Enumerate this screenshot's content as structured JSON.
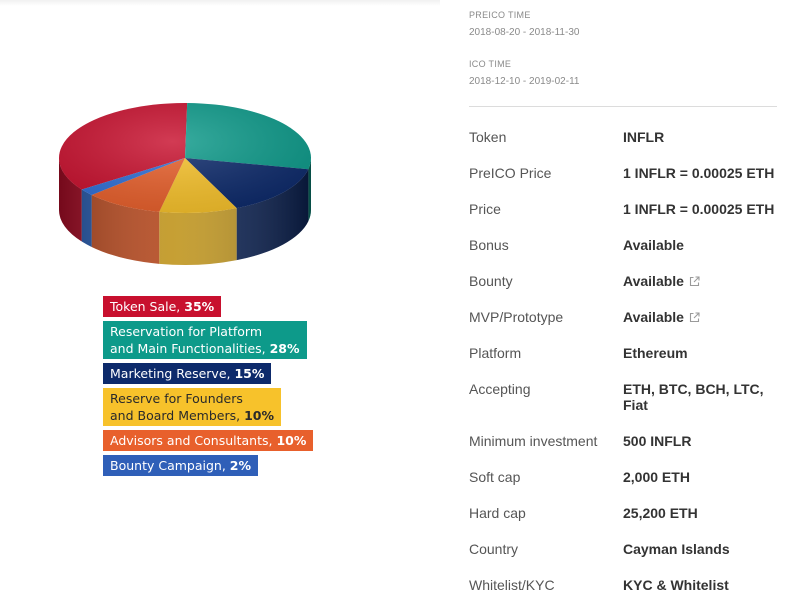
{
  "chart_data": {
    "type": "pie",
    "slices": [
      {
        "value": 35,
        "color": "#c8102e"
      },
      {
        "value": 28,
        "color": "#0d9a8a"
      },
      {
        "value": 15,
        "color": "#0d2a6b"
      },
      {
        "value": 10,
        "color": "#f7c22b"
      },
      {
        "value": 10,
        "color": "#e8602c"
      },
      {
        "value": 2,
        "color": "#2f6fd6"
      }
    ]
  },
  "legend": {
    "items": [
      {
        "lines": [
          "Token Sale, "
        ],
        "pct": "35%",
        "color": "#c8102e"
      },
      {
        "lines": [
          "Reservation for Platform",
          "and Main Functionalities, "
        ],
        "pct": "28%",
        "color": "#0d9a8a"
      },
      {
        "lines": [
          "Marketing Reserve, "
        ],
        "pct": "15%",
        "color": "#0d2a6b"
      },
      {
        "lines": [
          "Reserve for Founders",
          "and Board Members, "
        ],
        "pct": "10%",
        "color": "#f7c22b",
        "text_color": "#2a2a2a"
      },
      {
        "lines": [
          "Advisors and Consultants, "
        ],
        "pct": "10%",
        "color": "#e8602c"
      },
      {
        "lines": [
          "Bounty Campaign, "
        ],
        "pct": "2%",
        "color": "#2f5fb8"
      }
    ]
  },
  "preico": {
    "label": "PREICO TIME",
    "value": "2018-08-20 - 2018-11-30"
  },
  "ico": {
    "label": "ICO TIME",
    "value": "2018-12-10 - 2019-02-11"
  },
  "details": [
    {
      "key": "Token",
      "value": "INFLR"
    },
    {
      "key": "PreICO Price",
      "value": "1 INFLR = 0.00025 ETH"
    },
    {
      "key": "Price",
      "value": "1 INFLR = 0.00025 ETH"
    },
    {
      "key": "Bonus",
      "value": "Available"
    },
    {
      "key": "Bounty",
      "value": "Available",
      "link": true
    },
    {
      "key": "MVP/Prototype",
      "value": "Available",
      "link": true
    },
    {
      "key": "Platform",
      "value": "Ethereum"
    },
    {
      "key": "Accepting",
      "value": "ETH, BTC, BCH, LTC, Fiat"
    },
    {
      "key": "Minimum investment",
      "value": "500 INFLR"
    },
    {
      "key": "Soft cap",
      "value": "2,000 ETH"
    },
    {
      "key": "Hard cap",
      "value": "25,200 ETH"
    },
    {
      "key": "Country",
      "value": "Cayman Islands"
    },
    {
      "key": "Whitelist/KYC",
      "value": "KYC & Whitelist"
    }
  ],
  "icons": {
    "external_link": "external-link-icon"
  }
}
